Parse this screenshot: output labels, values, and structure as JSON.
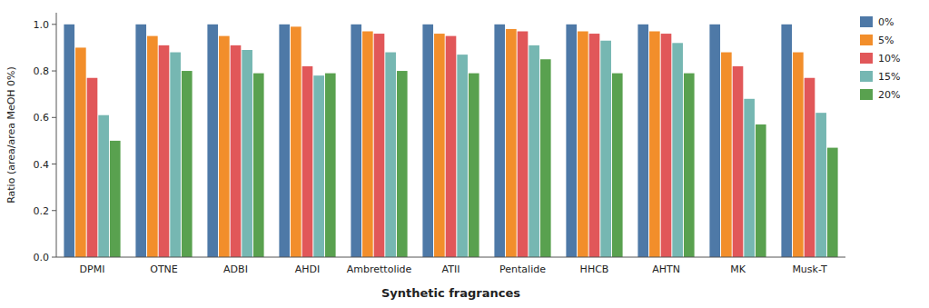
{
  "chart_data": {
    "type": "bar",
    "xlabel": "Synthetic fragrances",
    "ylabel": "Ratio (area/area MeOH 0%)",
    "categories": [
      "DPMI",
      "OTNE",
      "ADBI",
      "AHDI",
      "Ambrettolide",
      "ATII",
      "Pentalide",
      "HHCB",
      "AHTN",
      "MK",
      "Musk-T"
    ],
    "series": [
      {
        "name": "0%",
        "values": [
          1.0,
          1.0,
          1.0,
          1.0,
          1.0,
          1.0,
          1.0,
          1.0,
          1.0,
          1.0,
          1.0
        ]
      },
      {
        "name": "5%",
        "values": [
          0.9,
          0.95,
          0.95,
          0.99,
          0.97,
          0.96,
          0.98,
          0.97,
          0.97,
          0.88,
          0.88
        ]
      },
      {
        "name": "10%",
        "values": [
          0.77,
          0.91,
          0.91,
          0.82,
          0.96,
          0.95,
          0.97,
          0.96,
          0.96,
          0.82,
          0.77
        ]
      },
      {
        "name": "15%",
        "values": [
          0.61,
          0.88,
          0.89,
          0.78,
          0.88,
          0.87,
          0.91,
          0.93,
          0.92,
          0.68,
          0.62
        ]
      },
      {
        "name": "20%",
        "values": [
          0.5,
          0.8,
          0.79,
          0.79,
          0.8,
          0.79,
          0.85,
          0.79,
          0.79,
          0.57,
          0.47
        ]
      }
    ],
    "ylim": [
      0.0,
      1.05
    ],
    "yticks": [
      {
        "value": 0.0,
        "label": "0.0"
      },
      0.2,
      0.4,
      0.6,
      0.8,
      {
        "value": 1.0,
        "label": "1.0"
      }
    ],
    "grid": false,
    "legend": "upper right"
  }
}
